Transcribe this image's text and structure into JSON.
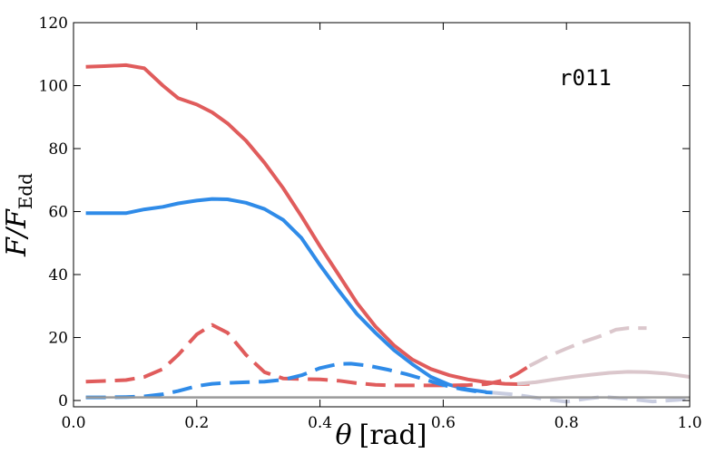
{
  "chart_data": {
    "type": "line",
    "title": "",
    "annotation": "r011",
    "xlabel_symbol": "θ",
    "xlabel_unit": "[rad]",
    "ylabel_main": "F/F",
    "ylabel_sub": "Edd",
    "xlim": [
      0.0,
      1.0
    ],
    "ylim": [
      -2,
      120
    ],
    "xticks": [
      0.0,
      0.2,
      0.4,
      0.6,
      0.8,
      1.0
    ],
    "xtick_labels": [
      "0.0",
      "0.2",
      "0.4",
      "0.6",
      "0.8",
      "1.0"
    ],
    "yticks": [
      0,
      20,
      40,
      60,
      80,
      100,
      120
    ],
    "ytick_labels": [
      "0",
      "20",
      "40",
      "60",
      "80",
      "100",
      "120"
    ],
    "grid": false,
    "colors": {
      "red": "#e05c5c",
      "blue": "#2f8be8",
      "pale_red": "#dbc7cc",
      "pale_blue": "#c9cde0",
      "gray": "#999999"
    },
    "series": [
      {
        "name": "red-solid",
        "color": "#e05c5c",
        "dash": "solid",
        "x": [
          0.02,
          0.05,
          0.085,
          0.115,
          0.145,
          0.17,
          0.2,
          0.225,
          0.25,
          0.28,
          0.31,
          0.34,
          0.37,
          0.4,
          0.43,
          0.46,
          0.49,
          0.52,
          0.55,
          0.58,
          0.61,
          0.64,
          0.67,
          0.7,
          0.72,
          0.74
        ],
        "y": [
          106,
          106.2,
          106.5,
          105.5,
          100,
          96,
          94,
          91.5,
          88,
          82.5,
          75.5,
          67.5,
          58.5,
          49,
          40,
          31,
          23.5,
          17.5,
          13,
          10,
          8,
          6.7,
          5.8,
          5.3,
          5.2,
          5.3
        ]
      },
      {
        "name": "blue-solid",
        "color": "#2f8be8",
        "dash": "solid",
        "x": [
          0.02,
          0.05,
          0.085,
          0.115,
          0.145,
          0.17,
          0.2,
          0.225,
          0.25,
          0.28,
          0.31,
          0.34,
          0.37,
          0.4,
          0.43,
          0.46,
          0.49,
          0.52,
          0.55,
          0.58,
          0.61,
          0.64,
          0.67
        ],
        "y": [
          59.5,
          59.5,
          59.5,
          60.7,
          61.5,
          62.6,
          63.5,
          64,
          63.9,
          62.8,
          60.8,
          57.4,
          51.6,
          43,
          35,
          27.5,
          21.5,
          16,
          11.5,
          7.5,
          5,
          3.5,
          2.7
        ]
      },
      {
        "name": "red-dashed",
        "color": "#e05c5c",
        "dash": "long",
        "x": [
          0.02,
          0.05,
          0.085,
          0.115,
          0.145,
          0.17,
          0.2,
          0.225,
          0.25,
          0.28,
          0.31,
          0.34,
          0.37,
          0.4,
          0.43,
          0.46,
          0.49,
          0.52,
          0.55,
          0.58,
          0.61,
          0.64,
          0.67,
          0.7,
          0.72,
          0.74
        ],
        "y": [
          6,
          6.2,
          6.5,
          7.5,
          10,
          14.5,
          21,
          24,
          21.5,
          14.5,
          9,
          7,
          6.8,
          6.7,
          6.3,
          5.5,
          5,
          4.8,
          4.8,
          4.8,
          4.8,
          4.9,
          5.2,
          6.5,
          8.5,
          11
        ]
      },
      {
        "name": "blue-dashed",
        "color": "#2f8be8",
        "dash": "long",
        "x": [
          0.02,
          0.05,
          0.085,
          0.115,
          0.145,
          0.17,
          0.2,
          0.225,
          0.25,
          0.28,
          0.31,
          0.34,
          0.37,
          0.4,
          0.43,
          0.45,
          0.48,
          0.51,
          0.54,
          0.57,
          0.6,
          0.63,
          0.66,
          0.68
        ],
        "y": [
          1,
          1,
          1.1,
          1.3,
          2,
          3,
          4.6,
          5.3,
          5.6,
          5.8,
          6,
          6.6,
          8,
          10.3,
          11.6,
          11.7,
          11,
          9.8,
          8.4,
          6.7,
          4.9,
          3.6,
          2.7,
          2.5
        ]
      },
      {
        "name": "pale-solid",
        "color": "#dbc7cc",
        "dash": "solid",
        "x": [
          0.72,
          0.75,
          0.78,
          0.81,
          0.84,
          0.87,
          0.9,
          0.93,
          0.96,
          1.0
        ],
        "y": [
          5.3,
          5.8,
          6.7,
          7.5,
          8.2,
          8.8,
          9.1,
          9.0,
          8.6,
          7.5
        ]
      },
      {
        "name": "pale-dashed",
        "color": "#dbc7cc",
        "dash": "long",
        "x": [
          0.74,
          0.77,
          0.8,
          0.83,
          0.86,
          0.88,
          0.9,
          0.93
        ],
        "y": [
          11,
          14,
          16.5,
          18.8,
          20.8,
          22.5,
          23,
          23
        ]
      },
      {
        "name": "pale-blue-dashed",
        "color": "#c9cde0",
        "dash": "long",
        "x": [
          0.68,
          0.71,
          0.74,
          0.77,
          0.8,
          0.83,
          0.86,
          0.9,
          0.94,
          0.98,
          1.0
        ],
        "y": [
          2.5,
          2,
          1.2,
          0.3,
          -0.4,
          0.5,
          1.2,
          0.5,
          -0.3,
          0.2,
          0.6
        ]
      },
      {
        "name": "gray-baseline",
        "color": "#999999",
        "dash": "solid",
        "x": [
          0.02,
          1.0
        ],
        "y": [
          1,
          1
        ]
      }
    ]
  }
}
